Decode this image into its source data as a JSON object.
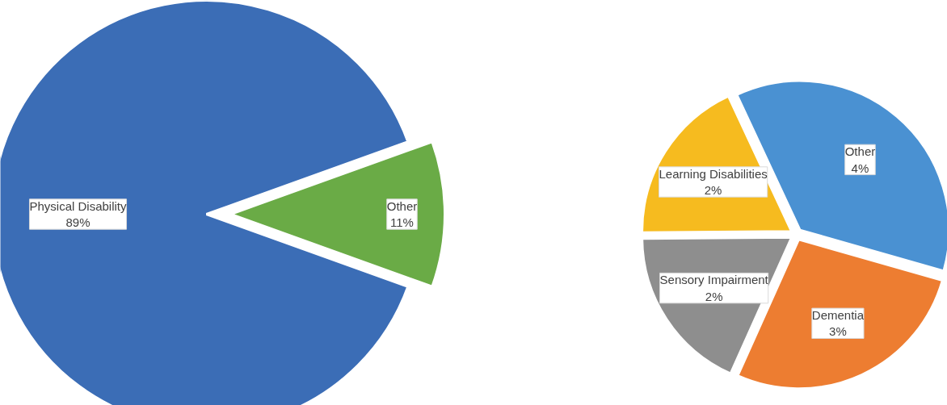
{
  "chart_data": [
    {
      "type": "pie",
      "categories": [
        "Physical Disability",
        "Other"
      ],
      "values": [
        89,
        11
      ],
      "value_labels": [
        "89%",
        "11%"
      ],
      "colors": [
        "#3b6db6",
        "#6aab46"
      ]
    },
    {
      "type": "pie",
      "categories": [
        "Other",
        "Dementia",
        "Sensory Impairment",
        "Learning Disabilities"
      ],
      "values": [
        4,
        3,
        2,
        2
      ],
      "value_labels": [
        "4%",
        "3%",
        "2%",
        "2%"
      ],
      "colors": [
        "#4a91d2",
        "#ed7d31",
        "#8e8e8e",
        "#f6bb1f"
      ]
    }
  ]
}
